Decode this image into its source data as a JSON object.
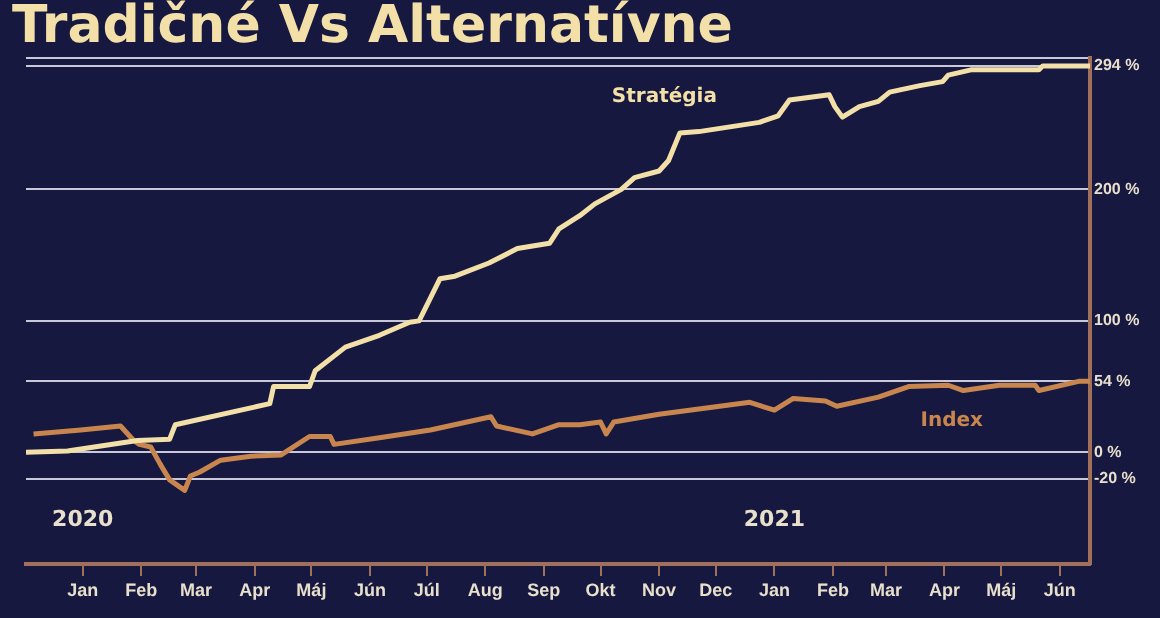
{
  "chart_data": {
    "type": "line",
    "title": "Tradičné Vs Alternatívne",
    "series": [
      {
        "name": "Stratégia",
        "color": "#f3dfa8",
        "x": [
          "2019-12-02",
          "2019-12-24",
          "2020-01-30",
          "2020-02-16",
          "2020-02-19",
          "2020-04-09",
          "2020-04-11",
          "2020-04-30",
          "2020-05-03",
          "2020-05-19",
          "2020-06-06",
          "2020-06-22",
          "2020-06-27",
          "2020-07-08",
          "2020-07-16",
          "2020-08-03",
          "2020-08-18",
          "2020-09-04",
          "2020-09-09",
          "2020-09-20",
          "2020-09-28",
          "2020-10-12",
          "2020-10-19",
          "2020-11-01",
          "2020-11-06",
          "2020-11-12",
          "2020-11-22",
          "2020-12-24",
          "2021-01-03",
          "2021-01-09",
          "2021-01-30",
          "2021-02-02",
          "2021-02-06",
          "2021-02-15",
          "2021-02-25",
          "2021-03-03",
          "2021-03-19",
          "2021-03-31",
          "2021-04-03",
          "2021-04-15",
          "2021-05-21",
          "2021-05-23",
          "2021-06-17"
        ],
        "values": [
          0,
          1,
          9,
          10,
          21,
          37,
          50,
          50,
          62,
          80,
          89,
          99,
          100,
          132,
          134,
          144,
          155,
          159,
          170,
          180,
          189,
          200,
          209,
          214,
          222,
          243,
          244,
          251,
          256,
          268,
          272,
          263,
          255,
          263,
          267,
          274,
          279,
          282,
          287,
          291,
          291,
          294,
          294
        ]
      },
      {
        "name": "Index",
        "color": "#c8864e",
        "x": [
          "2019-12-06",
          "2019-12-31",
          "2020-01-21",
          "2020-01-28",
          "2020-01-31",
          "2020-02-06",
          "2020-02-11",
          "2020-02-16",
          "2020-02-24",
          "2020-02-27",
          "2020-03-03",
          "2020-03-14",
          "2020-03-30",
          "2020-04-15",
          "2020-04-30",
          "2020-05-11",
          "2020-05-13",
          "2020-06-06",
          "2020-07-03",
          "2020-08-04",
          "2020-08-07",
          "2020-08-26",
          "2020-09-09",
          "2020-09-20",
          "2020-10-01",
          "2020-10-03",
          "2020-10-04",
          "2020-10-08",
          "2020-11-01",
          "2020-12-03",
          "2020-12-19",
          "2021-01-01",
          "2021-01-11",
          "2021-01-28",
          "2021-02-03",
          "2021-02-25",
          "2021-03-13",
          "2021-04-03",
          "2021-04-11",
          "2021-04-30",
          "2021-05-19",
          "2021-05-21",
          "2021-06-11",
          "2021-06-17"
        ],
        "values": [
          14,
          17,
          20,
          9,
          6,
          4,
          -9,
          -21,
          -29,
          -18,
          -15,
          -6,
          -3,
          -2,
          12,
          12,
          6,
          11,
          17,
          27,
          20,
          14,
          21,
          21,
          23,
          17,
          14,
          23,
          29,
          35,
          38,
          32,
          41,
          39,
          35,
          42,
          50,
          51,
          47,
          51,
          51,
          47,
          54,
          54
        ]
      }
    ],
    "xlim": [
      "2019-12-02",
      "2021-06-17"
    ],
    "xticks": [
      {
        "value": "2020-01-01",
        "label": "Jan"
      },
      {
        "value": "2020-02-01",
        "label": "Feb"
      },
      {
        "value": "2020-03-01",
        "label": "Mar"
      },
      {
        "value": "2020-04-01",
        "label": "Apr"
      },
      {
        "value": "2020-05-01",
        "label": "Máj"
      },
      {
        "value": "2020-06-01",
        "label": "Jún"
      },
      {
        "value": "2020-07-01",
        "label": "Júl"
      },
      {
        "value": "2020-08-01",
        "label": "Aug"
      },
      {
        "value": "2020-09-01",
        "label": "Sep"
      },
      {
        "value": "2020-10-01",
        "label": "Okt"
      },
      {
        "value": "2020-11-01",
        "label": "Nov"
      },
      {
        "value": "2020-12-01",
        "label": "Dec"
      },
      {
        "value": "2021-01-01",
        "label": "Jan"
      },
      {
        "value": "2021-02-01",
        "label": "Feb"
      },
      {
        "value": "2021-03-01",
        "label": "Mar"
      },
      {
        "value": "2021-04-01",
        "label": "Apr"
      },
      {
        "value": "2021-05-01",
        "label": "Máj"
      },
      {
        "value": "2021-06-01",
        "label": "Jún"
      }
    ],
    "ylim": [
      -85,
      300
    ],
    "yticks": [
      {
        "value": -20,
        "label": "-20 %"
      },
      {
        "value": 0,
        "label": "0 %"
      },
      {
        "value": 54,
        "label": "54 %"
      },
      {
        "value": 100,
        "label": "100 %"
      },
      {
        "value": 200,
        "label": "200 %"
      },
      {
        "value": 294,
        "label": "294 %"
      },
      {
        "value": 300,
        "label": null
      }
    ],
    "grid": "y",
    "legend": false,
    "marker": "none",
    "line_style": "solid",
    "annotations": [
      "2020",
      "2021"
    ]
  }
}
